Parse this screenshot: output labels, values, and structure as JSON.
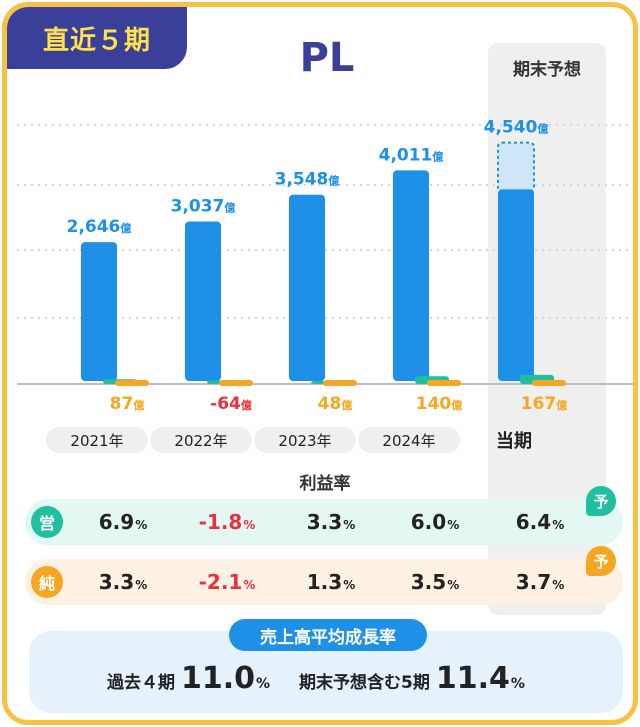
{
  "header": {
    "tag": "直近５期",
    "title": "PL",
    "forecast_label": "期末予想"
  },
  "colors": {
    "sales": "#1e90e8",
    "sales_forecast": "#cfe6f8",
    "operating": "#1fbfa0",
    "net": "#f5a623",
    "negative": "#e8313c",
    "badge_bg": "#3a3f9a",
    "badge_text": "#ffe14a",
    "border": "#f7c144"
  },
  "chart_data": {
    "type": "bar",
    "unit": "億",
    "categories": [
      "2021年",
      "2022年",
      "2023年",
      "2024年",
      "当期"
    ],
    "series": [
      {
        "values": [
          2646,
          3037,
          3548,
          4011,
          4540
        ]
      },
      {
        "values": [
          87,
          -64,
          48,
          140,
          167
        ]
      }
    ],
    "sales_labels": [
      "2,646",
      "3,037",
      "3,548",
      "4,011",
      "4,540"
    ],
    "profit_labels": [
      "87",
      "-64",
      "48",
      "140",
      "167"
    ],
    "forecast_actual_portion": 4540,
    "grid": true
  },
  "rates": {
    "title": "利益率",
    "operating": {
      "badge": "営",
      "values": [
        "6.9",
        "-1.8",
        "3.3",
        "6.0",
        "6.4"
      ]
    },
    "net": {
      "badge": "純",
      "values": [
        "3.3",
        "-2.1",
        "1.3",
        "3.5",
        "3.7"
      ]
    },
    "unit": "%",
    "forecast_mark": "予"
  },
  "cagr": {
    "title": "売上高平均成長率",
    "past_label": "過去４期",
    "past_value": "11.0",
    "incl_label": "期末予想含む5期",
    "incl_value": "11.4",
    "unit": "%"
  }
}
